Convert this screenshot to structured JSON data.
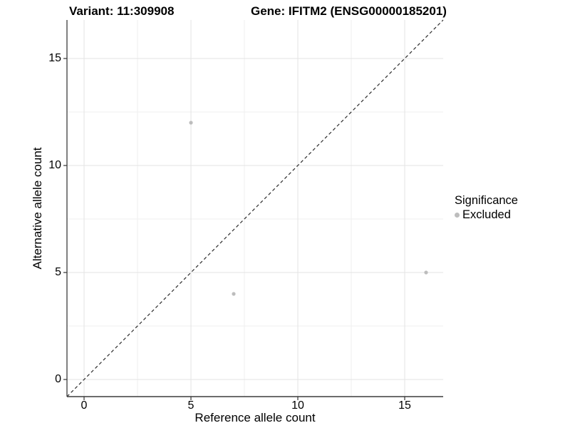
{
  "header": {
    "variant_title": "Variant: 11:309908",
    "gene_title": "Gene: IFITM2 (ENSG00000185201)"
  },
  "chart_data": {
    "type": "scatter",
    "title": "Variant: 11:309908   Gene: IFITM2 (ENSG00000185201)",
    "xlabel": "Reference allele count",
    "ylabel": "Alternative allele count",
    "xlim": [
      -0.8,
      16.8
    ],
    "ylim": [
      -0.8,
      16.8
    ],
    "x_ticks": [
      0,
      5,
      10,
      15
    ],
    "y_ticks": [
      0,
      5,
      10,
      15
    ],
    "x_minor_ticks": [
      2.5,
      7.5,
      12.5
    ],
    "y_minor_ticks": [
      2.5,
      7.5,
      12.5
    ],
    "grid": true,
    "legend_position": "right",
    "reference_line": {
      "type": "identity",
      "slope": 1,
      "intercept": 0,
      "style": "dashed",
      "color": "#2b2b2b"
    },
    "series": [
      {
        "name": "Excluded",
        "color": "#bdbdbd",
        "points": [
          {
            "x": 5,
            "y": 12
          },
          {
            "x": 7,
            "y": 4
          },
          {
            "x": 16,
            "y": 5
          }
        ]
      }
    ]
  },
  "legend": {
    "title": "Significance",
    "items": [
      {
        "label": "Excluded",
        "color": "#bdbdbd"
      }
    ]
  },
  "colors": {
    "background": "#ffffff",
    "point": "#bdbdbd",
    "grid_major": "#e3e3e3",
    "grid_minor": "#efefef",
    "axis_line": "#3c3c3c",
    "tick_mark": "#333333",
    "text": "#000000"
  }
}
